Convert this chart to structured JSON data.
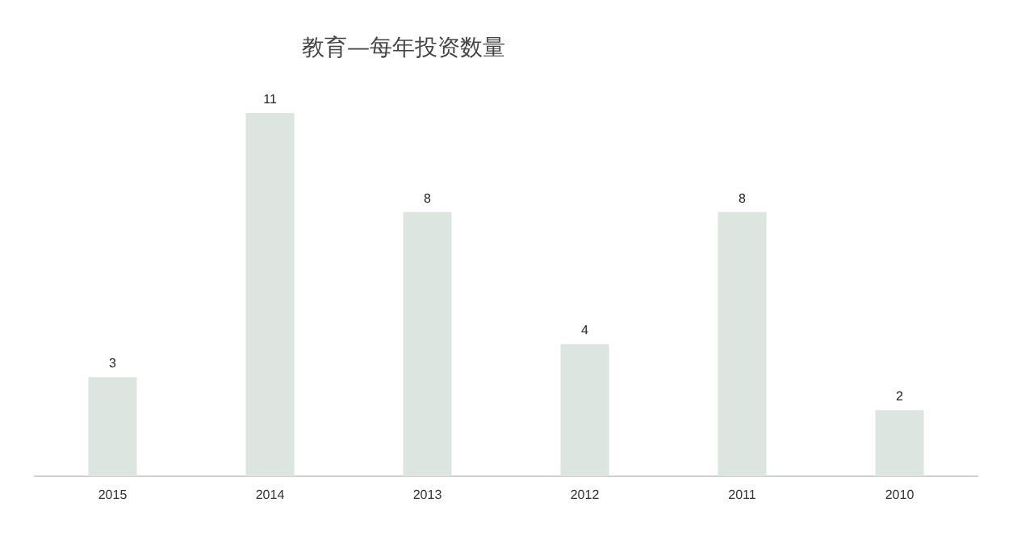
{
  "chart_data": {
    "type": "bar",
    "title": "教育—每年投资数量",
    "categories": [
      "2015",
      "2014",
      "2013",
      "2012",
      "2011",
      "2010"
    ],
    "values": [
      3,
      11,
      8,
      4,
      8,
      2
    ],
    "color": "#dce5e0",
    "data_labels": true
  }
}
